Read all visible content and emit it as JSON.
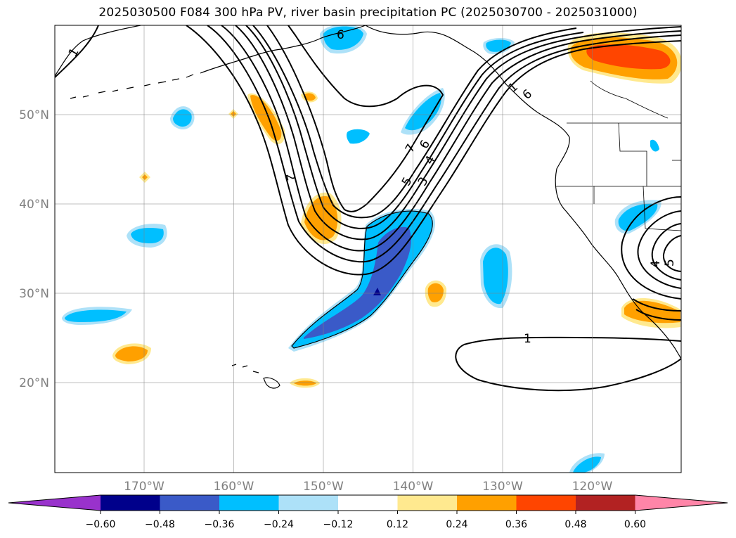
{
  "chart_data": {
    "type": "heatmap",
    "title": "2025030500 F084 300 hPa PV, river basin precipitation PC (2025030700 - 2025031000)",
    "x_ticks": [
      "170°W",
      "160°W",
      "150°W",
      "140°W",
      "130°W",
      "120°W"
    ],
    "x_values": [
      -170,
      -160,
      -150,
      -140,
      -130,
      -120
    ],
    "y_ticks": [
      "50°N",
      "40°N",
      "30°N",
      "20°N"
    ],
    "y_values": [
      50,
      40,
      30,
      20
    ],
    "xlim": [
      -180,
      -110
    ],
    "ylim": [
      10,
      60
    ],
    "grid": true,
    "colorbar": {
      "ticks": [
        "−0.60",
        "−0.48",
        "−0.36",
        "−0.24",
        "−0.12",
        "0.12",
        "0.24",
        "0.36",
        "0.48",
        "0.60"
      ],
      "values": [
        -0.6,
        -0.48,
        -0.36,
        -0.24,
        -0.12,
        0.12,
        0.24,
        0.36,
        0.48,
        0.6
      ],
      "colors": [
        "#9932CC",
        "#00008B",
        "#3A5AC8",
        "#00BFFF",
        "#ADE1F8",
        "#FFFFFF",
        "#FFE98F",
        "#FFA000",
        "#FF4500",
        "#B22222",
        "#FF85A8"
      ],
      "extend": "both"
    },
    "contour_labels": [
      "6",
      "1",
      "7",
      "6",
      "5",
      "4",
      "3",
      "2",
      "1",
      "5",
      "4",
      "6",
      "1"
    ],
    "contour_field": "300 hPa PV",
    "shaded_field": "river basin precipitation PC"
  }
}
